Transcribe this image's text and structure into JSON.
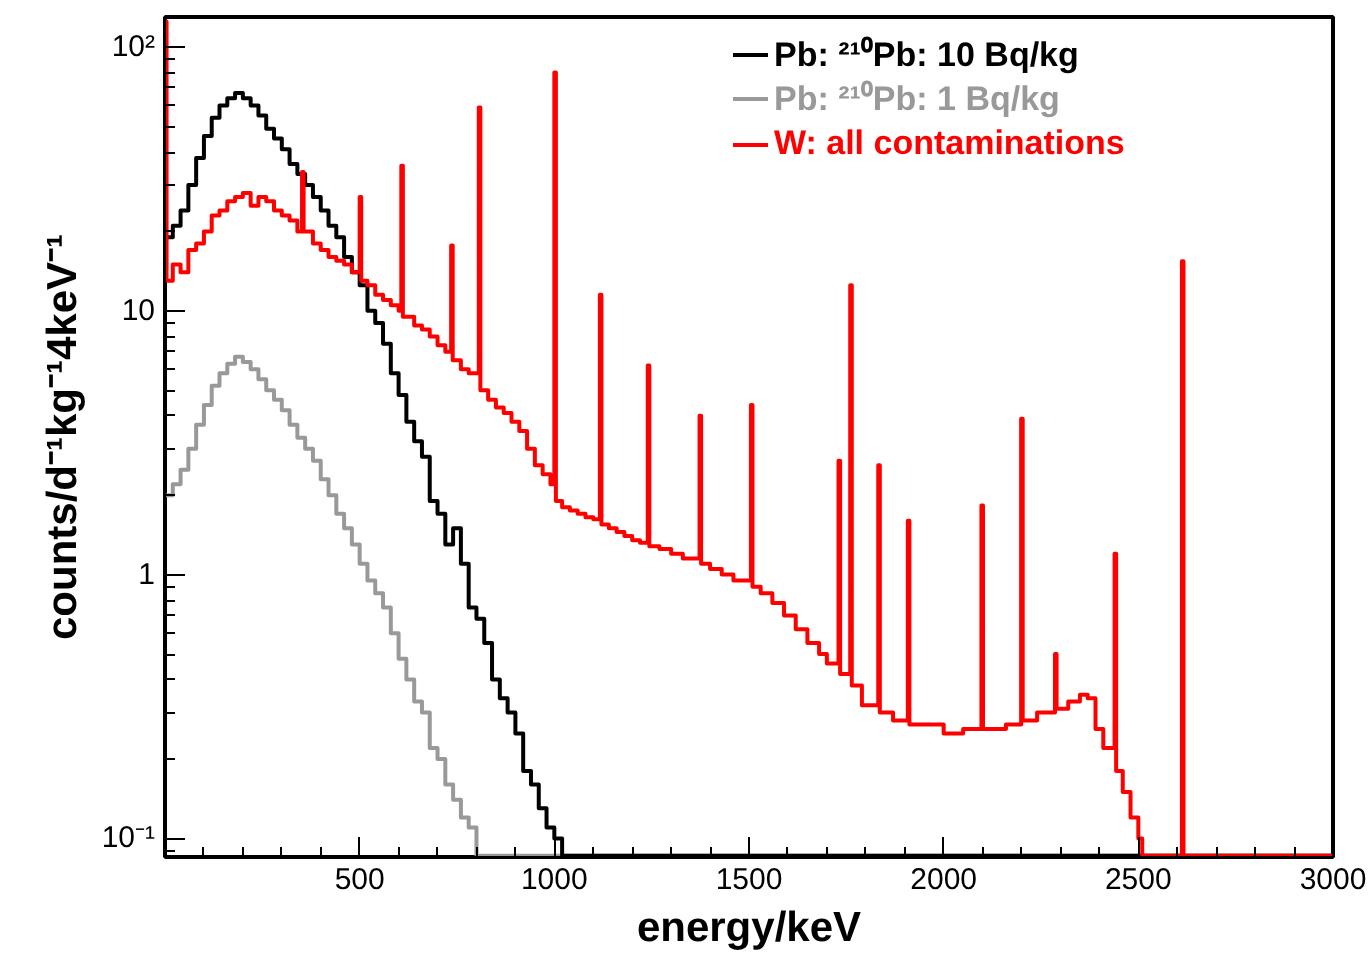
{
  "chart_data": {
    "type": "step",
    "xlabel": "energy/keV",
    "ylabel": "counts/d⁻¹kg⁻¹4keV⁻¹",
    "log": "y",
    "xlim": [
      0,
      3000
    ],
    "ylim": [
      0.085,
      130
    ],
    "xticks": [
      500,
      1000,
      1500,
      2000,
      2500,
      3000
    ],
    "yticks": [
      {
        "value": 0.1,
        "label": "10⁻¹"
      },
      1,
      10,
      {
        "value": 100,
        "label": "10²"
      }
    ],
    "grid": false,
    "legend": "top right",
    "marker": "none",
    "line_style": "solid",
    "series": [
      {
        "name": "W: all contaminations",
        "color": "#ff0000",
        "x": [
          0,
          4,
          20,
          40,
          60,
          80,
          100,
          120,
          140,
          160,
          180,
          200,
          220,
          240,
          260,
          280,
          300,
          320,
          340,
          352,
          356,
          380,
          400,
          420,
          440,
          460,
          480,
          500,
          504,
          520,
          540,
          560,
          580,
          600,
          607,
          611,
          640,
          660,
          680,
          700,
          720,
          735,
          739,
          760,
          780,
          806,
          810,
          830,
          850,
          870,
          890,
          910,
          930,
          950,
          970,
          990,
          1000,
          1004,
          1020,
          1040,
          1060,
          1080,
          1100,
          1117,
          1121,
          1140,
          1160,
          1180,
          1200,
          1220,
          1240,
          1244,
          1270,
          1300,
          1330,
          1373,
          1377,
          1400,
          1430,
          1460,
          1505,
          1509,
          1530,
          1560,
          1590,
          1620,
          1650,
          1680,
          1700,
          1730,
          1734,
          1760,
          1764,
          1790,
          1832,
          1836,
          1870,
          1908,
          1912,
          1950,
          2000,
          2050,
          2097,
          2101,
          2130,
          2160,
          2199,
          2203,
          2240,
          2286,
          2290,
          2320,
          2350,
          2370,
          2390,
          2410,
          2439,
          2443,
          2460,
          2480,
          2500,
          2510,
          2612,
          2616,
          3000
        ],
        "values": [
          125,
          13,
          15,
          14,
          17,
          18,
          20,
          23,
          24,
          26,
          27,
          28,
          25,
          27,
          26,
          24,
          23,
          22,
          20,
          33.6,
          20,
          18,
          17,
          16,
          15.5,
          15,
          14,
          27,
          13,
          12.5,
          11.5,
          11,
          10.5,
          10,
          35.5,
          9.5,
          8.8,
          8.5,
          8,
          7.4,
          7,
          17.7,
          6.5,
          6,
          5.8,
          59,
          5,
          4.6,
          4.3,
          4.1,
          3.8,
          3.5,
          3,
          2.6,
          2.4,
          2.2,
          80,
          1.9,
          1.8,
          1.75,
          1.7,
          1.65,
          1.62,
          11.5,
          1.55,
          1.5,
          1.45,
          1.4,
          1.35,
          1.32,
          6.2,
          1.28,
          1.25,
          1.2,
          1.15,
          4.0,
          1.1,
          1.05,
          1.0,
          0.95,
          4.4,
          0.9,
          0.85,
          0.78,
          0.7,
          0.62,
          0.55,
          0.5,
          0.46,
          2.7,
          0.42,
          12.5,
          0.38,
          0.32,
          2.6,
          0.3,
          0.28,
          1.6,
          0.27,
          0.27,
          0.25,
          0.26,
          1.83,
          0.26,
          0.26,
          0.27,
          3.9,
          0.28,
          0.3,
          0.5,
          0.31,
          0.33,
          0.35,
          0.34,
          0.26,
          0.22,
          1.2,
          0.18,
          0.15,
          0.12,
          0.1,
          0.086,
          15.4,
          0.086,
          0.086
        ]
      },
      {
        "name": "Pb: ²¹⁰Pb: 10 Bq/kg",
        "color": "#000000",
        "x": [
          0,
          20,
          40,
          60,
          80,
          100,
          120,
          140,
          160,
          180,
          200,
          220,
          240,
          260,
          280,
          300,
          320,
          340,
          360,
          380,
          400,
          420,
          440,
          460,
          480,
          500,
          520,
          540,
          560,
          580,
          600,
          620,
          640,
          660,
          680,
          700,
          720,
          740,
          760,
          780,
          800,
          820,
          840,
          860,
          880,
          900,
          920,
          940,
          960,
          980,
          1000,
          1020,
          1030,
          3000
        ],
        "values": [
          19,
          21,
          24,
          30,
          38,
          46,
          54,
          60,
          64,
          67,
          64,
          60,
          55,
          49,
          45,
          41,
          36,
          33,
          30,
          27,
          24,
          21,
          19,
          16,
          14,
          12.5,
          10,
          9,
          7.5,
          5.8,
          4.8,
          3.8,
          3.2,
          2.8,
          1.9,
          1.7,
          1.3,
          1.5,
          1.1,
          0.75,
          0.68,
          0.55,
          0.4,
          0.34,
          0.3,
          0.25,
          0.18,
          0.16,
          0.13,
          0.11,
          0.1,
          0.086,
          0.086,
          0.086
        ]
      },
      {
        "name": "Pb: ²¹⁰Pb: 1 Bq/kg",
        "color": "#999999",
        "x": [
          0,
          20,
          40,
          60,
          80,
          100,
          120,
          140,
          160,
          180,
          200,
          220,
          240,
          260,
          280,
          300,
          320,
          340,
          360,
          380,
          400,
          420,
          440,
          460,
          480,
          500,
          520,
          540,
          560,
          580,
          600,
          620,
          640,
          660,
          680,
          700,
          720,
          740,
          760,
          780,
          800,
          3000
        ],
        "values": [
          2.0,
          2.2,
          2.5,
          3.0,
          3.7,
          4.4,
          5.2,
          5.8,
          6.3,
          6.7,
          6.4,
          6.0,
          5.5,
          5.0,
          4.6,
          4.2,
          3.7,
          3.3,
          3.0,
          2.7,
          2.3,
          2.0,
          1.7,
          1.5,
          1.3,
          1.1,
          0.95,
          0.85,
          0.75,
          0.6,
          0.48,
          0.4,
          0.33,
          0.3,
          0.22,
          0.2,
          0.16,
          0.14,
          0.12,
          0.11,
          0.086,
          0.086
        ]
      }
    ]
  }
}
